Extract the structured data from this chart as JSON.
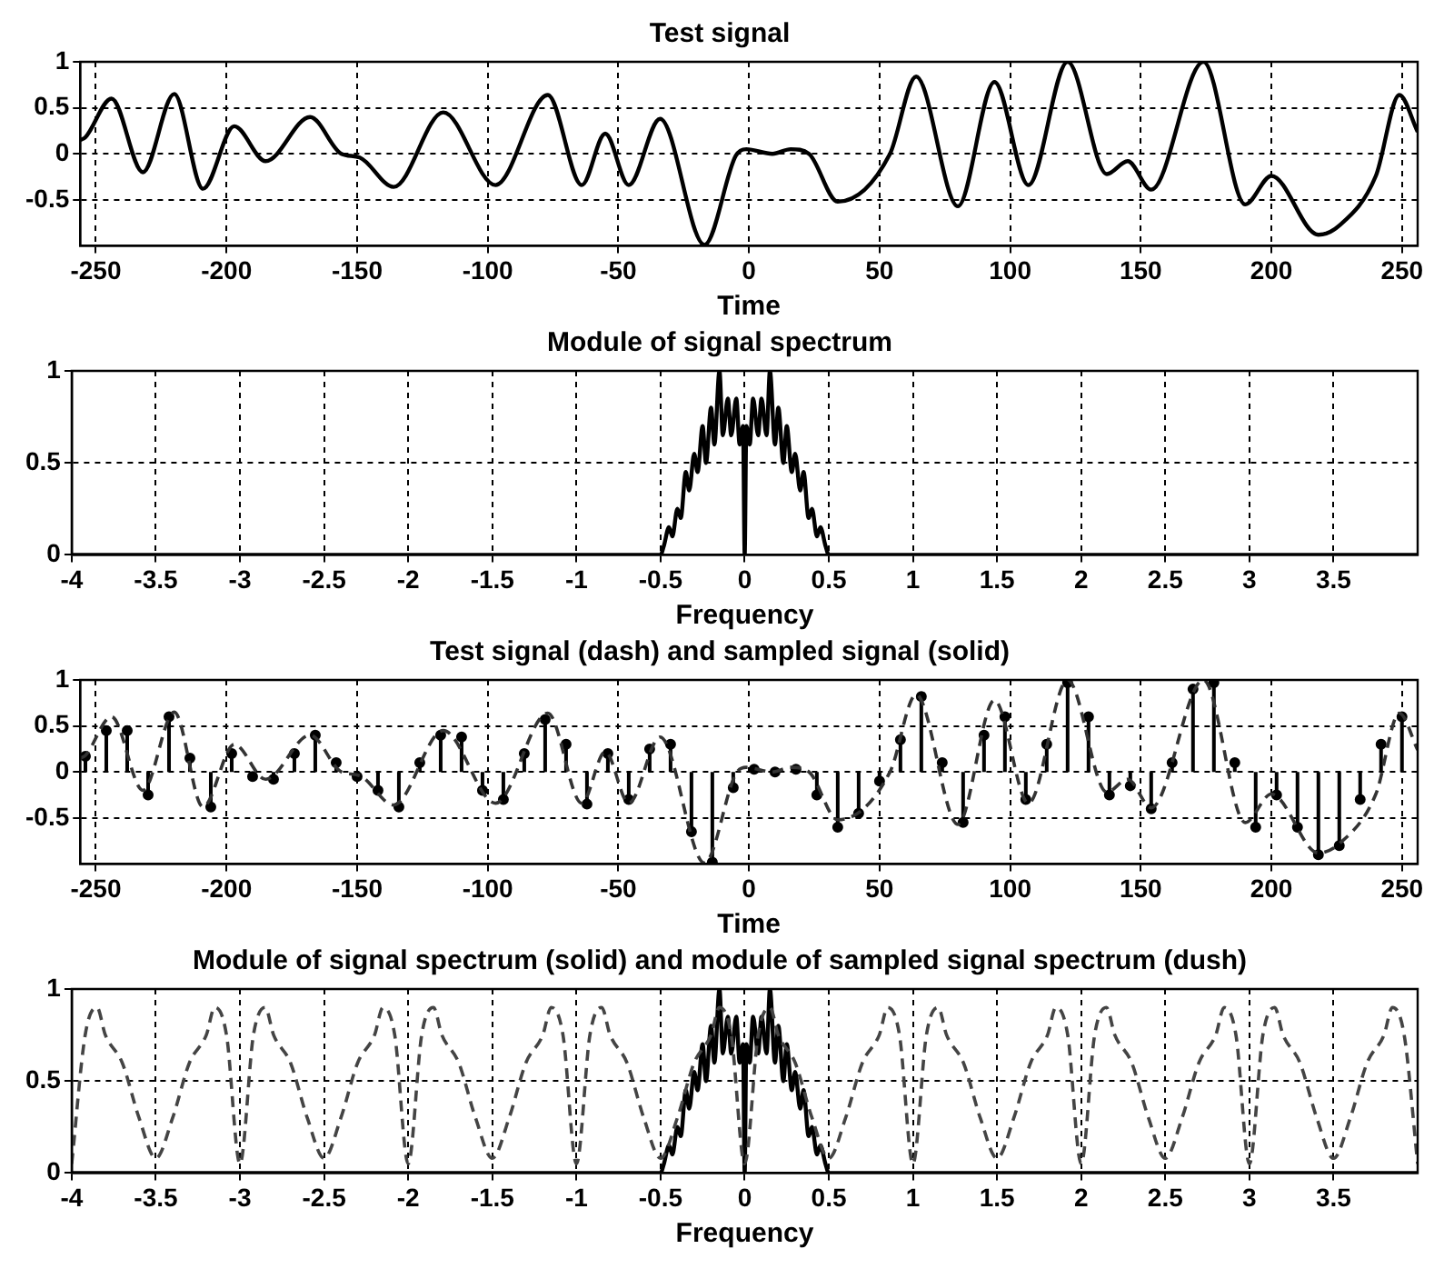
{
  "chart_data": [
    {
      "type": "line",
      "title": "Test signal",
      "xlabel": "Time",
      "xlim": [
        -256,
        256
      ],
      "xticks": [
        -250,
        -200,
        -150,
        -100,
        -50,
        0,
        50,
        100,
        150,
        200,
        250
      ],
      "ylim": [
        -1,
        1
      ],
      "yticks": [
        -0.5,
        0,
        0.5,
        1
      ],
      "grid": true,
      "series": [
        {
          "type": "line",
          "color": "#000000",
          "line_style": "solid",
          "x": [
            -256,
            -254,
            -244,
            -232,
            -220,
            -209,
            -197,
            -185,
            -168,
            -156,
            -149,
            -136,
            -117,
            -97,
            -77,
            -64,
            -55,
            -46,
            -34,
            -17,
            -5,
            -1,
            9,
            16,
            23,
            34,
            54,
            64,
            80,
            94,
            107,
            122,
            137,
            145,
            154,
            174,
            190,
            200,
            218,
            226,
            240,
            249,
            256
          ],
          "values": [
            0.15,
            0.18,
            0.6,
            -0.2,
            0.65,
            -0.38,
            0.3,
            -0.08,
            0.4,
            0,
            -0.04,
            -0.36,
            0.45,
            -0.34,
            0.64,
            -0.34,
            0.22,
            -0.34,
            0.38,
            -0.99,
            -0.02,
            0.05,
            0,
            0.05,
            0,
            -0.52,
            0,
            0.84,
            -0.57,
            0.78,
            -0.34,
            1,
            -0.22,
            -0.08,
            -0.39,
            1,
            -0.55,
            -0.24,
            -0.88,
            -0.78,
            -0.24,
            0.64,
            0.24
          ]
        }
      ]
    },
    {
      "type": "line",
      "title": "Module of signal spectrum",
      "xlabel": "Frequency",
      "xlim": [
        -4,
        4
      ],
      "xticks": [
        -4,
        -3.5,
        -3,
        -2.5,
        -2,
        -1.5,
        -1,
        -0.5,
        0,
        0.5,
        1,
        1.5,
        2,
        2.5,
        3,
        3.5
      ],
      "ylim": [
        0,
        1
      ],
      "yticks": [
        0,
        0.5,
        1
      ],
      "grid": true,
      "series": [
        {
          "type": "line",
          "color": "#000000",
          "line_style": "solid",
          "x": [
            -4,
            -0.5,
            -0.48,
            -0.45,
            -0.43,
            -0.4,
            -0.38,
            -0.35,
            -0.33,
            -0.3,
            -0.28,
            -0.25,
            -0.23,
            -0.2,
            -0.18,
            -0.15,
            -0.13,
            -0.1,
            -0.08,
            -0.05,
            -0.03,
            -0.01,
            0,
            0.01,
            0.03,
            0.05,
            0.08,
            0.1,
            0.13,
            0.15,
            0.18,
            0.2,
            0.23,
            0.25,
            0.28,
            0.3,
            0.33,
            0.35,
            0.38,
            0.4,
            0.43,
            0.45,
            0.48,
            0.5,
            4
          ],
          "values": [
            0,
            0,
            0.05,
            0.15,
            0.1,
            0.25,
            0.2,
            0.45,
            0.35,
            0.55,
            0.45,
            0.7,
            0.5,
            0.8,
            0.6,
            1,
            0.65,
            0.85,
            0.65,
            0.85,
            0.6,
            0.7,
            0,
            0.7,
            0.6,
            0.85,
            0.65,
            0.85,
            0.65,
            1,
            0.6,
            0.8,
            0.5,
            0.7,
            0.45,
            0.55,
            0.35,
            0.45,
            0.2,
            0.25,
            0.1,
            0.15,
            0.05,
            0,
            0
          ]
        }
      ]
    },
    {
      "type": "line",
      "title": "Test signal (dash) and sampled signal (solid)",
      "xlabel": "Time",
      "xlim": [
        -256,
        256
      ],
      "xticks": [
        -250,
        -200,
        -150,
        -100,
        -50,
        0,
        50,
        100,
        150,
        200,
        250
      ],
      "ylim": [
        -1,
        1
      ],
      "yticks": [
        -0.5,
        0,
        0.5,
        1
      ],
      "grid": true,
      "series": [
        {
          "type": "line",
          "color": "#333333",
          "line_style": "dashed",
          "x": [
            -256,
            -254,
            -244,
            -232,
            -220,
            -209,
            -197,
            -185,
            -168,
            -156,
            -149,
            -136,
            -117,
            -97,
            -77,
            -64,
            -55,
            -46,
            -34,
            -17,
            -5,
            -1,
            9,
            16,
            23,
            34,
            54,
            64,
            80,
            94,
            107,
            122,
            137,
            145,
            154,
            174,
            190,
            200,
            218,
            226,
            240,
            249,
            256
          ],
          "values": [
            0.15,
            0.18,
            0.6,
            -0.2,
            0.65,
            -0.38,
            0.3,
            -0.08,
            0.4,
            0,
            -0.04,
            -0.36,
            0.45,
            -0.34,
            0.64,
            -0.34,
            0.22,
            -0.34,
            0.38,
            -0.99,
            -0.02,
            0.05,
            0,
            0.05,
            0,
            -0.52,
            0,
            0.84,
            -0.57,
            0.78,
            -0.34,
            1,
            -0.22,
            -0.08,
            -0.39,
            1,
            -0.55,
            -0.24,
            -0.88,
            -0.78,
            -0.24,
            0.64,
            0.24
          ]
        },
        {
          "type": "lollipop",
          "color": "#000000",
          "marker": "circle",
          "x": [
            -254,
            -246,
            -238,
            -230,
            -222,
            -214,
            -206,
            -198,
            -190,
            -182,
            -174,
            -166,
            -158,
            -150,
            -142,
            -134,
            -126,
            -118,
            -110,
            -102,
            -94,
            -86,
            -78,
            -70,
            -62,
            -54,
            -46,
            -38,
            -30,
            -22,
            -14,
            -6,
            2,
            10,
            18,
            26,
            34,
            42,
            50,
            58,
            66,
            74,
            82,
            90,
            98,
            106,
            114,
            122,
            130,
            138,
            146,
            154,
            162,
            170,
            178,
            186,
            194,
            202,
            210,
            218,
            226,
            234,
            242,
            250
          ],
          "values": [
            0.17,
            0.45,
            0.45,
            -0.25,
            0.6,
            0.15,
            -0.38,
            0.2,
            -0.05,
            -0.08,
            0.2,
            0.4,
            0.1,
            -0.05,
            -0.2,
            -0.38,
            0.1,
            0.4,
            0.38,
            -0.2,
            -0.3,
            0.2,
            0.57,
            0.3,
            -0.35,
            0.2,
            -0.3,
            0.25,
            0.3,
            -0.65,
            -0.98,
            -0.17,
            0.03,
            0,
            0.03,
            -0.25,
            -0.6,
            -0.45,
            -0.1,
            0.35,
            0.82,
            0.1,
            -0.55,
            0.4,
            0.6,
            -0.3,
            0.3,
            0.97,
            0.6,
            -0.25,
            -0.15,
            -0.4,
            0.1,
            0.9,
            0.97,
            0.1,
            -0.6,
            -0.25,
            -0.6,
            -0.9,
            -0.8,
            -0.3,
            0.3,
            0.6
          ]
        }
      ]
    },
    {
      "type": "line",
      "title": "Module of signal spectrum (solid) and module of sampled signal spectrum (dush)",
      "xlabel": "Frequency",
      "xlim": [
        -4,
        4
      ],
      "xticks": [
        -4,
        -3.5,
        -3,
        -2.5,
        -2,
        -1.5,
        -1,
        -0.5,
        0,
        0.5,
        1,
        1.5,
        2,
        2.5,
        3,
        3.5
      ],
      "ylim": [
        0,
        1
      ],
      "yticks": [
        0,
        0.5,
        1
      ],
      "grid": true,
      "series": [
        {
          "type": "line",
          "color": "#444444",
          "line_style": "dashed",
          "x": [
            -4,
            -3.92,
            -3.85,
            -3.8,
            -3.7,
            -3.6,
            -3.5,
            -3.4,
            -3.3,
            -3.2,
            -3.15,
            -3.08,
            -3,
            -2.92,
            -2.85,
            -2.8,
            -2.7,
            -2.6,
            -2.5,
            -2.4,
            -2.3,
            -2.2,
            -2.15,
            -2.08,
            -2,
            -1.92,
            -1.85,
            -1.8,
            -1.7,
            -1.6,
            -1.5,
            -1.4,
            -1.3,
            -1.2,
            -1.15,
            -1.08,
            -1,
            -0.92,
            -0.85,
            -0.8,
            -0.7,
            -0.6,
            -0.5,
            -0.4,
            -0.3,
            -0.2,
            -0.15,
            -0.08,
            0,
            0.08,
            0.15,
            0.2,
            0.3,
            0.4,
            0.5,
            0.6,
            0.7,
            0.8,
            0.85,
            0.92,
            1,
            1.08,
            1.15,
            1.2,
            1.3,
            1.4,
            1.5,
            1.6,
            1.7,
            1.8,
            1.85,
            1.92,
            2,
            2.08,
            2.15,
            2.2,
            2.3,
            2.4,
            2.5,
            2.6,
            2.7,
            2.8,
            2.85,
            2.92,
            3,
            3.08,
            3.15,
            3.2,
            3.3,
            3.4,
            3.5,
            3.6,
            3.7,
            3.8,
            3.85,
            3.92,
            4
          ],
          "values": [
            0.05,
            0.75,
            0.9,
            0.75,
            0.6,
            0.3,
            0.08,
            0.3,
            0.6,
            0.75,
            0.9,
            0.75,
            0.05,
            0.75,
            0.9,
            0.75,
            0.6,
            0.3,
            0.08,
            0.3,
            0.6,
            0.75,
            0.9,
            0.75,
            0.05,
            0.75,
            0.9,
            0.75,
            0.6,
            0.3,
            0.08,
            0.3,
            0.6,
            0.75,
            0.9,
            0.75,
            0.05,
            0.75,
            0.9,
            0.75,
            0.6,
            0.3,
            0.08,
            0.3,
            0.6,
            0.75,
            0.9,
            0.75,
            0.05,
            0.75,
            0.9,
            0.75,
            0.6,
            0.3,
            0.08,
            0.3,
            0.6,
            0.75,
            0.9,
            0.75,
            0.05,
            0.75,
            0.9,
            0.75,
            0.6,
            0.3,
            0.08,
            0.3,
            0.6,
            0.75,
            0.9,
            0.75,
            0.05,
            0.75,
            0.9,
            0.75,
            0.6,
            0.3,
            0.08,
            0.3,
            0.6,
            0.75,
            0.9,
            0.75,
            0.05,
            0.75,
            0.9,
            0.75,
            0.6,
            0.3,
            0.08,
            0.3,
            0.6,
            0.75,
            0.9,
            0.75,
            0.05
          ]
        },
        {
          "type": "line",
          "color": "#000000",
          "line_style": "solid",
          "x": [
            -4,
            -0.5,
            -0.48,
            -0.45,
            -0.43,
            -0.4,
            -0.38,
            -0.35,
            -0.33,
            -0.3,
            -0.28,
            -0.25,
            -0.23,
            -0.2,
            -0.18,
            -0.15,
            -0.13,
            -0.1,
            -0.08,
            -0.05,
            -0.03,
            -0.01,
            0,
            0.01,
            0.03,
            0.05,
            0.08,
            0.1,
            0.13,
            0.15,
            0.18,
            0.2,
            0.23,
            0.25,
            0.28,
            0.3,
            0.33,
            0.35,
            0.38,
            0.4,
            0.43,
            0.45,
            0.48,
            0.5,
            4
          ],
          "values": [
            0,
            0,
            0.05,
            0.15,
            0.1,
            0.25,
            0.2,
            0.45,
            0.35,
            0.55,
            0.45,
            0.7,
            0.5,
            0.8,
            0.6,
            1,
            0.65,
            0.85,
            0.65,
            0.85,
            0.6,
            0.7,
            0,
            0.7,
            0.6,
            0.85,
            0.65,
            0.85,
            0.65,
            1,
            0.6,
            0.8,
            0.5,
            0.7,
            0.45,
            0.55,
            0.35,
            0.45,
            0.2,
            0.25,
            0.1,
            0.15,
            0.05,
            0,
            0
          ]
        }
      ]
    }
  ]
}
